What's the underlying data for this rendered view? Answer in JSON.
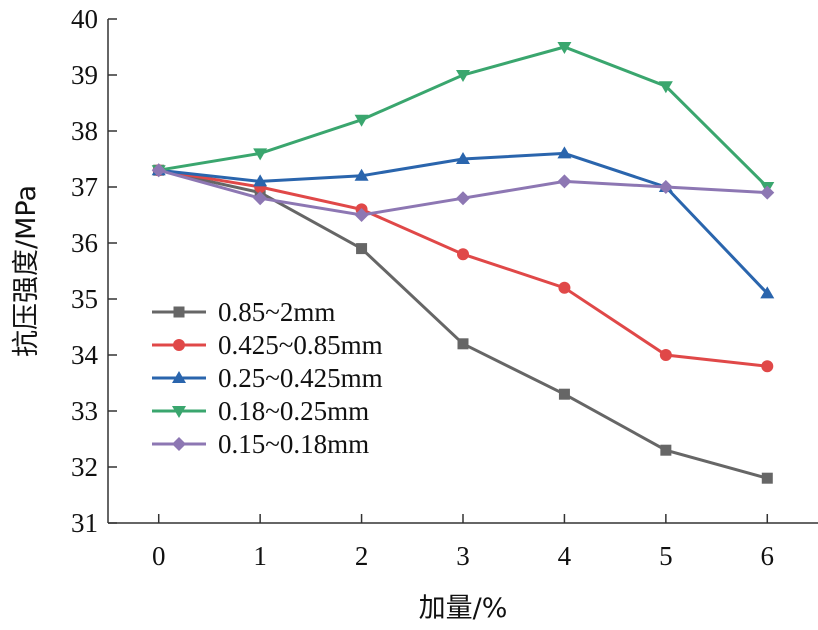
{
  "chart_data": {
    "type": "line",
    "xlabel": "加量/%",
    "ylabel": "抗压强度/MPa",
    "x": [
      0,
      1,
      2,
      3,
      4,
      5,
      6
    ],
    "xlim": [
      -0.5,
      6.5
    ],
    "ylim": [
      31,
      40
    ],
    "yticks": [
      31,
      32,
      33,
      34,
      35,
      36,
      37,
      38,
      39,
      40
    ],
    "grid": false,
    "legend_position": "lower-left",
    "series": [
      {
        "name": "0.85~2mm",
        "color": "#666666",
        "marker": "square",
        "values": [
          37.3,
          36.9,
          35.9,
          34.2,
          33.3,
          32.3,
          31.8
        ]
      },
      {
        "name": "0.425~0.85mm",
        "color": "#e04848",
        "marker": "circle",
        "values": [
          37.3,
          37.0,
          36.6,
          35.8,
          35.2,
          34.0,
          33.8
        ]
      },
      {
        "name": "0.25~0.425mm",
        "color": "#2a65ad",
        "marker": "triangle-up",
        "values": [
          37.3,
          37.1,
          37.2,
          37.5,
          37.6,
          37.0,
          35.1
        ]
      },
      {
        "name": "0.18~0.25mm",
        "color": "#3aa66e",
        "marker": "triangle-down",
        "values": [
          37.3,
          37.6,
          38.2,
          39.0,
          39.5,
          38.8,
          37.0
        ]
      },
      {
        "name": "0.15~0.18mm",
        "color": "#8d77b3",
        "marker": "diamond",
        "values": [
          37.3,
          36.8,
          36.5,
          36.8,
          37.1,
          37.0,
          36.9
        ]
      }
    ]
  }
}
